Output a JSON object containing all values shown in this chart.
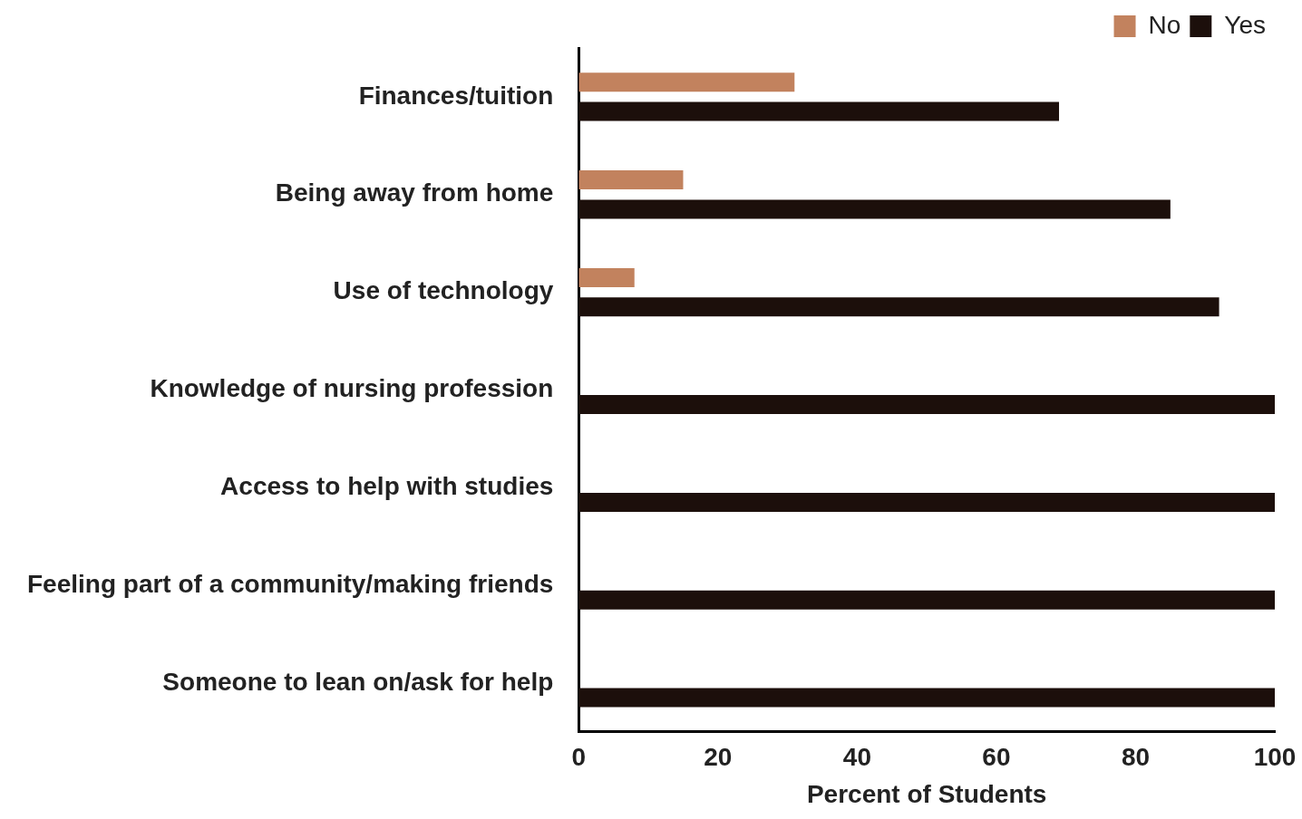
{
  "chart_data": {
    "type": "bar",
    "orientation": "horizontal",
    "categories": [
      "Finances/tuition",
      "Being away from home",
      "Use of technology",
      "Knowledge of nursing profession",
      "Access to help with studies",
      "Feeling part of a community/making friends",
      "Someone to lean on/ask for help"
    ],
    "series": [
      {
        "name": "No",
        "color": "#c2825e",
        "values": [
          31,
          15,
          8,
          0,
          0,
          0,
          0
        ]
      },
      {
        "name": "Yes",
        "color": "#1c0f0b",
        "values": [
          69,
          85,
          92,
          100,
          100,
          100,
          100
        ]
      }
    ],
    "xlabel": "Percent of Students",
    "xlim": [
      0,
      100
    ],
    "xticks": [
      0,
      20,
      40,
      60,
      80,
      100
    ],
    "grid": false,
    "legend": "top right"
  }
}
